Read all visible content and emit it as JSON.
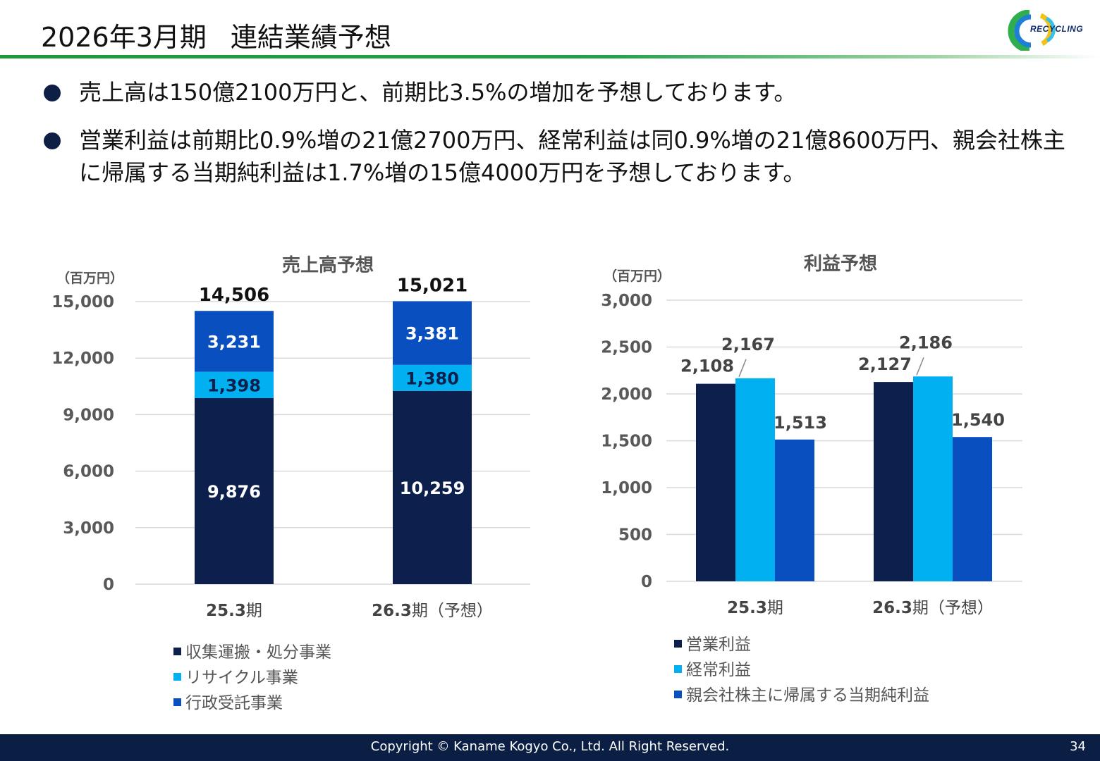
{
  "title": {
    "period": "2026年3月期",
    "main": "連結業績予想"
  },
  "logo": {
    "text": "RECYCLING"
  },
  "bullets": [
    "売上高は150億2100万円と、前期比3.5%の増加を予想しております。",
    "営業利益は前期比0.9%増の21億2700万円、経常利益は同0.9%増の21億8600万円、親会社株主に帰属する当期純利益は1.7%増の15億4000万円を予想しております。"
  ],
  "footer": {
    "copyright": "Copyright © Kaname Kogyo Co., Ltd. All Right Reserved.",
    "page": "34"
  },
  "colors": {
    "navy": "#0d1f4c",
    "cyan": "#00b0f0",
    "blue": "#0a4fbf",
    "title_rule": "#1c9a3a",
    "footer": "#0b1f45"
  },
  "chart_data": [
    {
      "type": "bar",
      "stacked": true,
      "title": "売上高予想",
      "unit": "（百万円）",
      "categories": [
        "25.3期",
        "26.3期（予想）"
      ],
      "category_parts": [
        {
          "main": "25.3",
          "suffix": "期"
        },
        {
          "main": "26.3",
          "suffix": "期（予想）"
        }
      ],
      "ylim": [
        0,
        15000
      ],
      "yticks": [
        0,
        3000,
        6000,
        9000,
        12000,
        15000
      ],
      "ytick_labels": [
        "0",
        "3,000",
        "6,000",
        "9,000",
        "12,000",
        "15,000"
      ],
      "totals": [
        14506,
        15021
      ],
      "total_labels": [
        "14,506",
        "15,021"
      ],
      "series": [
        {
          "name": "収集運搬・処分事業",
          "values": [
            9876,
            10259
          ],
          "labels": [
            "9,876",
            "10,259"
          ],
          "color": "#0d1f4c"
        },
        {
          "name": "リサイクル事業",
          "values": [
            1398,
            1380
          ],
          "labels": [
            "1,398",
            "1,380"
          ],
          "color": "#00b0f0"
        },
        {
          "name": "行政受託事業",
          "values": [
            3231,
            3381
          ],
          "labels": [
            "3,231",
            "3,381"
          ],
          "color": "#0a4fbf"
        }
      ],
      "grid": true,
      "legend": "bottom"
    },
    {
      "type": "bar",
      "stacked": false,
      "title": "利益予想",
      "unit": "（百万円）",
      "categories": [
        "25.3期",
        "26.3期（予想）"
      ],
      "category_parts": [
        {
          "main": "25.3",
          "suffix": "期"
        },
        {
          "main": "26.3",
          "suffix": "期（予想）"
        }
      ],
      "ylim": [
        0,
        3000
      ],
      "yticks": [
        0,
        500,
        1000,
        1500,
        2000,
        2500,
        3000
      ],
      "ytick_labels": [
        "0",
        "500",
        "1,000",
        "1,500",
        "2,000",
        "2,500",
        "3,000"
      ],
      "series": [
        {
          "name": "営業利益",
          "values": [
            2108,
            2127
          ],
          "labels": [
            "2,108",
            "2,127"
          ],
          "color": "#0d1f4c"
        },
        {
          "name": "経常利益",
          "values": [
            2167,
            2186
          ],
          "labels": [
            "2,167",
            "2,186"
          ],
          "color": "#00b0f0"
        },
        {
          "name": "親会社株主に帰属する当期純利益",
          "values": [
            1513,
            1540
          ],
          "labels": [
            "1,513",
            "1,540"
          ],
          "color": "#0a4fbf"
        }
      ],
      "grid": true,
      "legend": "bottom"
    }
  ]
}
